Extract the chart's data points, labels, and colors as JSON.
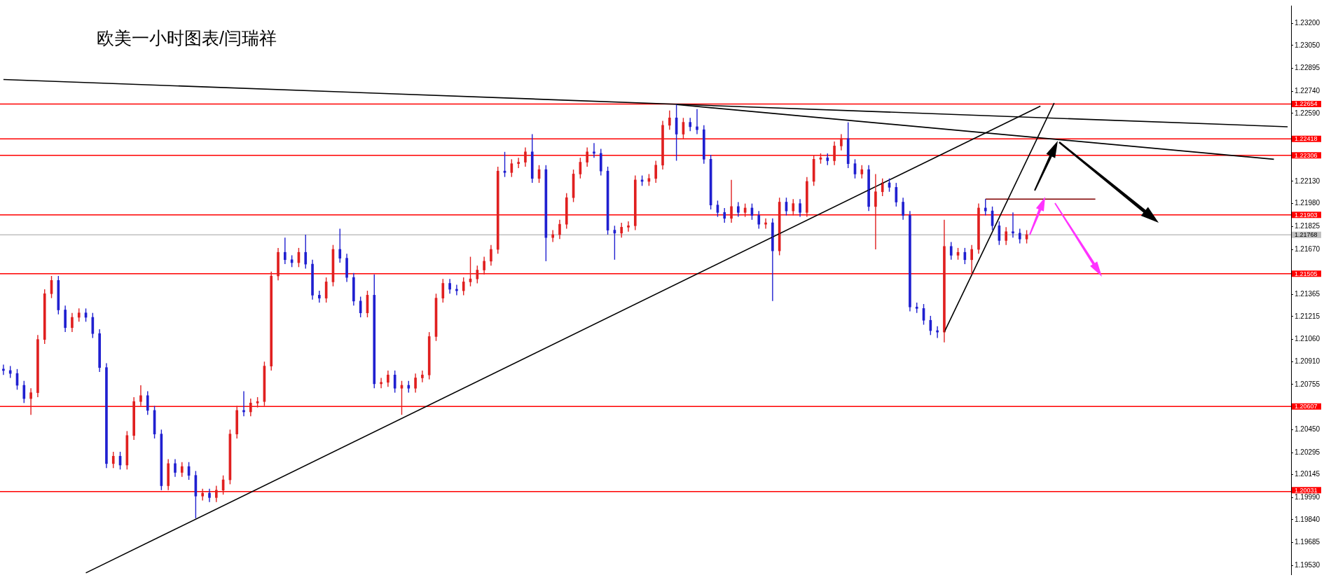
{
  "chart_data": {
    "type": "candlestick",
    "title": "欧美一小时图表/闫瑞祥",
    "categories": [
      null,
      null,
      null,
      null,
      null,
      null,
      null,
      null,
      null,
      null,
      null,
      null,
      null,
      null,
      null,
      null,
      null,
      null,
      null,
      null,
      null,
      null,
      null,
      null,
      null,
      null,
      null,
      null,
      null,
      null,
      null,
      null,
      null,
      null,
      null,
      null,
      null,
      null,
      null,
      null,
      null,
      null,
      null,
      null,
      null,
      null,
      null,
      null,
      null,
      null,
      null,
      null,
      null,
      null,
      null,
      null,
      null,
      null,
      null,
      null,
      null,
      null,
      null,
      null,
      null,
      null,
      null,
      null,
      null,
      null,
      null,
      null,
      null,
      null,
      null,
      null,
      null,
      null,
      null,
      null,
      null,
      null,
      null,
      null,
      null,
      null,
      null,
      null,
      null,
      null,
      null,
      null,
      null,
      null,
      null,
      null,
      null,
      null,
      null,
      null,
      null,
      null,
      null,
      null,
      null,
      null,
      null,
      null,
      null,
      null,
      null,
      null,
      null,
      null,
      null,
      null,
      null,
      null,
      null,
      null,
      null,
      null,
      null,
      null,
      null,
      null,
      null,
      null,
      null,
      null,
      null,
      null,
      null,
      null,
      null,
      null,
      null,
      null,
      null,
      null,
      null,
      null,
      null,
      null,
      null,
      null,
      null,
      null,
      null,
      null,
      null,
      null,
      null,
      null,
      null,
      null,
      null,
      null,
      null,
      null,
      null,
      null,
      null,
      null,
      null,
      null,
      null,
      null,
      null,
      null,
      null,
      null,
      null,
      null,
      null,
      null,
      null,
      null,
      null,
      null,
      null,
      null,
      null,
      null,
      null,
      null,
      null,
      null
    ],
    "ohlc": [
      [
        1.2086,
        1.2089,
        1.2082,
        1.2085
      ],
      [
        1.2085,
        1.2088,
        1.208,
        1.2083
      ],
      [
        1.2083,
        1.2086,
        1.2072,
        1.2075
      ],
      [
        1.2075,
        1.2078,
        1.2063,
        1.2066
      ],
      [
        1.2066,
        1.2073,
        1.2055,
        1.207
      ],
      [
        1.207,
        1.2109,
        1.2067,
        1.2106
      ],
      [
        1.2106,
        1.214,
        1.2103,
        1.2137
      ],
      [
        1.2137,
        1.2149,
        1.2134,
        1.2146
      ],
      [
        1.2146,
        1.2149,
        1.2123,
        1.2126
      ],
      [
        1.2126,
        1.2129,
        1.2111,
        1.2114
      ],
      [
        1.2114,
        1.2124,
        1.2111,
        1.2121
      ],
      [
        1.2121,
        1.2127,
        1.2118,
        1.2124
      ],
      [
        1.2124,
        1.2127,
        1.2118,
        1.2121
      ],
      [
        1.2121,
        1.2124,
        1.2107,
        1.211
      ],
      [
        1.211,
        1.2113,
        1.2084,
        1.2087
      ],
      [
        1.2087,
        1.209,
        1.2019,
        1.2022
      ],
      [
        1.2022,
        1.203,
        1.2019,
        1.2027
      ],
      [
        1.2027,
        1.203,
        1.2018,
        1.2021
      ],
      [
        1.2021,
        1.2044,
        1.2018,
        1.2041
      ],
      [
        1.2041,
        1.2067,
        1.2038,
        1.2064
      ],
      [
        1.2064,
        1.2075,
        1.2061,
        1.2068
      ],
      [
        1.2068,
        1.2071,
        1.2055,
        1.2058
      ],
      [
        1.2058,
        1.2061,
        1.2039,
        1.2042
      ],
      [
        1.2042,
        1.2045,
        1.2004,
        1.2007
      ],
      [
        1.2007,
        1.2025,
        1.2004,
        1.2022
      ],
      [
        1.2022,
        1.2025,
        1.2013,
        1.2016
      ],
      [
        1.2016,
        1.2023,
        1.2013,
        1.202
      ],
      [
        1.202,
        1.2023,
        1.2011,
        1.2014
      ],
      [
        1.2014,
        1.2017,
        1.1985,
        1.2
      ],
      [
        1.2,
        1.2005,
        1.1997,
        1.2002
      ],
      [
        1.2002,
        1.2005,
        1.1996,
        1.1999
      ],
      [
        1.1999,
        1.2007,
        1.1996,
        1.2004
      ],
      [
        1.2004,
        1.2014,
        1.2001,
        1.2011
      ],
      [
        1.2011,
        1.2045,
        1.2008,
        1.2042
      ],
      [
        1.2042,
        1.2061,
        1.2039,
        1.2058
      ],
      [
        1.2058,
        1.2071,
        1.2054,
        1.2057
      ],
      [
        1.2057,
        1.2066,
        1.2054,
        1.2063
      ],
      [
        1.2063,
        1.2067,
        1.206,
        1.2064
      ],
      [
        1.2064,
        1.2091,
        1.2061,
        1.2088
      ],
      [
        1.2088,
        1.2152,
        1.2085,
        1.2149
      ],
      [
        1.2149,
        1.2168,
        1.2146,
        1.2165
      ],
      [
        1.2165,
        1.2175,
        1.2157,
        1.216
      ],
      [
        1.216,
        1.2163,
        1.2155,
        1.2158
      ],
      [
        1.2158,
        1.2168,
        1.2155,
        1.2165
      ],
      [
        1.2165,
        1.2177,
        1.2154,
        1.2157
      ],
      [
        1.2157,
        1.216,
        1.2133,
        1.2136
      ],
      [
        1.2136,
        1.2139,
        1.2131,
        1.2134
      ],
      [
        1.2134,
        1.2148,
        1.2131,
        1.2145
      ],
      [
        1.2145,
        1.217,
        1.2142,
        1.2167
      ],
      [
        1.2167,
        1.2181,
        1.2158,
        1.2161
      ],
      [
        1.2161,
        1.2164,
        1.2145,
        1.2148
      ],
      [
        1.2148,
        1.2151,
        1.2129,
        1.2132
      ],
      [
        1.2132,
        1.2135,
        1.2121,
        1.2124
      ],
      [
        1.2124,
        1.2139,
        1.2121,
        1.2136
      ],
      [
        1.2136,
        1.215,
        1.2073,
        1.2076
      ],
      [
        1.2076,
        1.208,
        1.2073,
        1.2077
      ],
      [
        1.2077,
        1.2085,
        1.2074,
        1.2082
      ],
      [
        1.2082,
        1.2085,
        1.207,
        1.2073
      ],
      [
        1.2073,
        1.2078,
        1.2055,
        1.2075
      ],
      [
        1.2075,
        1.2078,
        1.207,
        1.2073
      ],
      [
        1.2073,
        1.2083,
        1.207,
        1.208
      ],
      [
        1.208,
        1.2085,
        1.2077,
        1.2082
      ],
      [
        1.2082,
        1.2111,
        1.2079,
        1.2108
      ],
      [
        1.2108,
        1.2137,
        1.2105,
        1.2134
      ],
      [
        1.2134,
        1.2147,
        1.2131,
        1.2144
      ],
      [
        1.2144,
        1.2147,
        1.2137,
        1.214
      ],
      [
        1.214,
        1.2143,
        1.2136,
        1.2139
      ],
      [
        1.2139,
        1.2148,
        1.2136,
        1.2145
      ],
      [
        1.2145,
        1.2162,
        1.2142,
        1.2147
      ],
      [
        1.2147,
        1.2156,
        1.2144,
        1.2153
      ],
      [
        1.2153,
        1.2162,
        1.215,
        1.2159
      ],
      [
        1.2159,
        1.217,
        1.2156,
        1.2167
      ],
      [
        1.2167,
        1.2223,
        1.2164,
        1.222
      ],
      [
        1.222,
        1.2233,
        1.2216,
        1.2219
      ],
      [
        1.2219,
        1.2228,
        1.2216,
        1.2225
      ],
      [
        1.2225,
        1.2229,
        1.2222,
        1.2226
      ],
      [
        1.2226,
        1.2236,
        1.2223,
        1.2233
      ],
      [
        1.2233,
        1.2245,
        1.2212,
        1.2215
      ],
      [
        1.2215,
        1.2224,
        1.2212,
        1.2221
      ],
      [
        1.2221,
        1.2224,
        1.2159,
        1.2175
      ],
      [
        1.2175,
        1.218,
        1.2172,
        1.2177
      ],
      [
        1.2177,
        1.2187,
        1.2174,
        1.2184
      ],
      [
        1.2184,
        1.2205,
        1.2181,
        1.2202
      ],
      [
        1.2202,
        1.2221,
        1.2199,
        1.2218
      ],
      [
        1.2218,
        1.2229,
        1.2215,
        1.2226
      ],
      [
        1.2226,
        1.2236,
        1.2223,
        1.2233
      ],
      [
        1.2233,
        1.2239,
        1.2229,
        1.2232
      ],
      [
        1.2232,
        1.2235,
        1.2217,
        1.222
      ],
      [
        1.222,
        1.2223,
        1.2177,
        1.218
      ],
      [
        1.218,
        1.2183,
        1.216,
        1.2178
      ],
      [
        1.2178,
        1.2185,
        1.2175,
        1.2182
      ],
      [
        1.2182,
        1.2186,
        1.2179,
        1.2183
      ],
      [
        1.2183,
        1.2217,
        1.218,
        1.2214
      ],
      [
        1.2214,
        1.2217,
        1.221,
        1.2213
      ],
      [
        1.2213,
        1.2218,
        1.221,
        1.2215
      ],
      [
        1.2215,
        1.2227,
        1.2212,
        1.2224
      ],
      [
        1.2224,
        1.2254,
        1.2221,
        1.2251
      ],
      [
        1.2251,
        1.2261,
        1.2248,
        1.2256
      ],
      [
        1.2256,
        1.2265,
        1.2227,
        1.2245
      ],
      [
        1.2245,
        1.2256,
        1.2242,
        1.2253
      ],
      [
        1.2253,
        1.2256,
        1.2247,
        1.225
      ],
      [
        1.225,
        1.2262,
        1.2245,
        1.2248
      ],
      [
        1.2248,
        1.2251,
        1.2225,
        1.2228
      ],
      [
        1.2228,
        1.2231,
        1.2194,
        1.2197
      ],
      [
        1.2197,
        1.22,
        1.2189,
        1.2192
      ],
      [
        1.2192,
        1.2195,
        1.2185,
        1.2188
      ],
      [
        1.2188,
        1.2214,
        1.2185,
        1.2196
      ],
      [
        1.2196,
        1.2199,
        1.2189,
        1.2192
      ],
      [
        1.2192,
        1.2198,
        1.2189,
        1.2195
      ],
      [
        1.2195,
        1.2198,
        1.2187,
        1.219
      ],
      [
        1.219,
        1.2193,
        1.2181,
        1.2184
      ],
      [
        1.2184,
        1.2188,
        1.2181,
        1.2185
      ],
      [
        1.2185,
        1.2188,
        1.2132,
        1.2166
      ],
      [
        1.2166,
        1.2202,
        1.2163,
        1.2199
      ],
      [
        1.2199,
        1.2202,
        1.219,
        1.2193
      ],
      [
        1.2193,
        1.2201,
        1.219,
        1.2198
      ],
      [
        1.2198,
        1.2201,
        1.2189,
        1.2192
      ],
      [
        1.2192,
        1.2216,
        1.2189,
        1.2213
      ],
      [
        1.2213,
        1.2231,
        1.221,
        1.2228
      ],
      [
        1.2228,
        1.2232,
        1.2225,
        1.2229
      ],
      [
        1.2229,
        1.2232,
        1.2224,
        1.2227
      ],
      [
        1.2227,
        1.224,
        1.2224,
        1.2237
      ],
      [
        1.2237,
        1.2245,
        1.2234,
        1.2242
      ],
      [
        1.2242,
        1.2253,
        1.2222,
        1.2225
      ],
      [
        1.2225,
        1.2228,
        1.2215,
        1.2218
      ],
      [
        1.2218,
        1.2224,
        1.2215,
        1.2221
      ],
      [
        1.2221,
        1.2224,
        1.2193,
        1.2196
      ],
      [
        1.2196,
        1.2218,
        1.2167,
        1.2206
      ],
      [
        1.2206,
        1.2215,
        1.2203,
        1.2212
      ],
      [
        1.2212,
        1.2215,
        1.2206,
        1.2209
      ],
      [
        1.2209,
        1.2212,
        1.2196,
        1.2199
      ],
      [
        1.2199,
        1.2202,
        1.2187,
        1.219
      ],
      [
        1.219,
        1.2193,
        1.2125,
        1.2128
      ],
      [
        1.2128,
        1.2131,
        1.2124,
        1.2127
      ],
      [
        1.2127,
        1.213,
        1.2116,
        1.2119
      ],
      [
        1.2119,
        1.2122,
        1.2109,
        1.2112
      ],
      [
        1.2112,
        1.2115,
        1.2107,
        1.2111
      ],
      [
        1.2111,
        1.2187,
        1.2104,
        1.2169
      ],
      [
        1.2169,
        1.2172,
        1.216,
        1.2163
      ],
      [
        1.2163,
        1.2168,
        1.216,
        1.2165
      ],
      [
        1.2165,
        1.2168,
        1.2157,
        1.216
      ],
      [
        1.216,
        1.217,
        1.215,
        1.2167
      ],
      [
        1.2167,
        1.2198,
        1.2164,
        1.2195
      ],
      [
        1.2195,
        1.2201,
        1.219,
        1.2193
      ],
      [
        1.2193,
        1.2196,
        1.218,
        1.2183
      ],
      [
        1.2183,
        1.2186,
        1.217,
        1.2173
      ],
      [
        1.2173,
        1.2182,
        1.217,
        1.2179
      ],
      [
        1.2179,
        1.2192,
        1.2175,
        1.2178
      ],
      [
        1.2178,
        1.2181,
        1.2171,
        1.2174
      ],
      [
        1.2174,
        1.218,
        1.2171,
        1.2177
      ],
      null,
      null,
      null,
      null,
      null,
      null,
      null,
      null,
      null,
      null,
      null,
      null,
      null,
      null,
      null,
      null,
      null,
      null,
      null,
      null,
      null,
      null,
      null,
      null,
      null,
      null,
      null,
      null,
      null,
      null,
      null,
      null,
      null,
      null,
      null,
      null,
      null,
      null
    ],
    "colors": [
      "#2020d0",
      "#2020d0",
      "#2020d0",
      "#2020d0",
      "#e02020",
      "#e02020",
      "#e02020",
      "#e02020",
      "#2020d0",
      "#2020d0",
      "#e02020",
      "#e02020",
      "#2020d0",
      "#2020d0",
      "#2020d0",
      "#2020d0",
      "#e02020",
      "#2020d0",
      "#e02020",
      "#e02020",
      "#e02020",
      "#2020d0",
      "#2020d0",
      "#2020d0",
      "#e02020",
      "#2020d0",
      "#e02020",
      "#2020d0",
      "#2020d0",
      "#e02020",
      "#2020d0",
      "#e02020",
      "#e02020",
      "#e02020",
      "#e02020",
      "#2020d0",
      "#e02020",
      "#e02020",
      "#e02020",
      "#e02020",
      "#e02020",
      "#2020d0",
      "#2020d0",
      "#e02020",
      "#2020d0",
      "#2020d0",
      "#2020d0",
      "#e02020",
      "#e02020",
      "#2020d0",
      "#2020d0",
      "#2020d0",
      "#2020d0",
      "#e02020",
      "#2020d0",
      "#e02020",
      "#e02020",
      "#2020d0",
      "#e02020",
      "#2020d0",
      "#e02020",
      "#e02020",
      "#e02020",
      "#e02020",
      "#e02020",
      "#2020d0",
      "#2020d0",
      "#e02020",
      "#e02020",
      "#e02020",
      "#e02020",
      "#e02020",
      "#e02020",
      "#2020d0",
      "#e02020",
      "#e02020",
      "#e02020",
      "#2020d0",
      "#e02020",
      "#2020d0",
      "#e02020",
      "#e02020",
      "#e02020",
      "#e02020",
      "#e02020",
      "#e02020",
      "#2020d0",
      "#2020d0",
      "#2020d0",
      "#2020d0",
      "#e02020",
      "#e02020",
      "#e02020",
      "#2020d0",
      "#e02020",
      "#e02020",
      "#e02020",
      "#e02020",
      "#2020d0",
      "#e02020",
      "#2020d0",
      "#2020d0",
      "#2020d0",
      "#2020d0",
      "#2020d0",
      "#2020d0",
      "#e02020",
      "#2020d0",
      "#e02020",
      "#2020d0",
      "#2020d0",
      "#e02020",
      "#2020d0",
      "#e02020",
      "#2020d0",
      "#e02020",
      "#2020d0",
      "#e02020",
      "#e02020",
      "#e02020",
      "#2020d0",
      "#e02020",
      "#e02020",
      "#2020d0",
      "#2020d0",
      "#e02020",
      "#2020d0",
      "#e02020",
      "#e02020",
      "#2020d0",
      "#2020d0",
      "#2020d0",
      "#2020d0",
      "#2020d0",
      "#2020d0",
      "#2020d0",
      "#2020d0",
      "#e02020",
      "#2020d0",
      "#e02020",
      "#2020d0",
      "#e02020",
      "#e02020",
      "#2020d0",
      "#2020d0",
      "#2020d0",
      "#e02020",
      "#2020d0",
      "#2020d0",
      "#e02020",
      null,
      null,
      null,
      null,
      null,
      null,
      null,
      null,
      null,
      null,
      null,
      null,
      null,
      null,
      null,
      null,
      null,
      null,
      null,
      null,
      null,
      null,
      null,
      null,
      null,
      null,
      null,
      null,
      null,
      null,
      null,
      null,
      null,
      null,
      null,
      null,
      null,
      null
    ],
    "series": [
      {
        "type": "line",
        "color": "#000000",
        "values": [
          1.2282,
          null,
          null,
          null,
          null,
          null,
          null,
          null,
          null,
          null,
          null,
          null,
          null,
          null,
          null,
          null,
          null,
          null,
          null,
          null,
          null,
          null,
          null,
          null,
          null,
          null,
          null,
          null,
          null,
          null,
          null,
          null,
          null,
          null,
          null,
          null,
          null,
          null,
          null,
          null,
          null,
          null,
          null,
          null,
          null,
          null,
          null,
          null,
          null,
          null,
          null,
          null,
          null,
          null,
          null,
          null,
          null,
          null,
          null,
          null,
          null,
          null,
          null,
          null,
          null,
          null,
          null,
          null,
          null,
          null,
          null,
          null,
          null,
          null,
          null,
          null,
          null,
          null,
          null,
          null,
          null,
          null,
          null,
          null,
          null,
          null,
          null,
          null,
          null,
          null,
          null,
          null,
          null,
          null,
          null,
          null,
          null,
          null,
          null,
          null,
          null,
          null,
          null,
          null,
          null,
          null,
          null,
          null,
          null,
          null,
          null,
          null,
          null,
          null,
          null,
          null,
          null,
          null,
          null,
          null,
          null,
          null,
          null,
          null,
          null,
          null,
          null,
          null,
          null,
          null,
          null,
          null,
          null,
          null,
          null,
          null,
          null,
          null,
          null,
          null,
          null,
          null,
          null,
          null,
          null,
          null,
          null,
          null,
          null,
          null,
          null,
          null,
          null,
          null,
          null,
          null,
          null,
          null,
          null,
          null,
          null,
          null,
          null,
          null,
          null,
          null,
          null,
          null,
          null,
          null,
          null,
          null,
          null,
          null,
          null,
          null,
          null,
          null,
          null,
          null,
          null,
          null,
          null,
          null,
          null,
          null,
          null,
          1.225
        ]
      },
      {
        "type": "line",
        "color": "#000000",
        "values": [
          null,
          null,
          null,
          null,
          null,
          null,
          null,
          null,
          null,
          null,
          null,
          null,
          null,
          null,
          null,
          null,
          null,
          null,
          null,
          null,
          null,
          null,
          null,
          null,
          null,
          null,
          null,
          null,
          null,
          null,
          null,
          null,
          null,
          null,
          null,
          null,
          null,
          null,
          null,
          null,
          null,
          null,
          null,
          null,
          null,
          null,
          null,
          null,
          null,
          null,
          null,
          null,
          null,
          null,
          null,
          null,
          null,
          null,
          null,
          null,
          null,
          null,
          null,
          null,
          null,
          null,
          null,
          null,
          null,
          null,
          null,
          null,
          null,
          null,
          null,
          null,
          null,
          null,
          null,
          null,
          null,
          null,
          null,
          null,
          null,
          null,
          null,
          null,
          null,
          null,
          null,
          null,
          null,
          null,
          null,
          null,
          null,
          null,
          1.2265,
          null,
          null,
          null,
          null,
          null,
          null,
          null,
          null,
          null,
          null,
          null,
          null,
          null,
          null,
          null,
          null,
          null,
          null,
          null,
          null,
          null,
          null,
          null,
          null,
          null,
          null,
          null,
          null,
          null,
          null,
          null,
          null,
          null,
          null,
          null,
          null,
          null,
          null,
          null,
          null,
          null,
          null,
          null,
          null,
          null,
          null,
          null,
          null,
          null,
          null,
          null,
          null,
          null,
          null,
          null,
          null,
          null,
          null,
          null,
          null,
          null,
          null,
          null,
          null,
          null,
          null,
          null,
          null,
          null,
          null,
          null,
          null,
          null,
          null,
          null,
          null,
          null,
          null,
          null,
          null,
          null,
          null,
          null,
          null,
          null,
          null,
          1.2228,
          null,
          null
        ]
      },
      {
        "type": "line",
        "color": "#000000",
        "values": [
          null,
          null,
          null,
          null,
          null,
          null,
          null,
          null,
          null,
          null,
          null,
          null,
          1.1948,
          null,
          null,
          null,
          null,
          null,
          null,
          null,
          null,
          null,
          null,
          null,
          null,
          null,
          null,
          null,
          null,
          null,
          null,
          null,
          null,
          null,
          null,
          null,
          null,
          null,
          null,
          null,
          null,
          null,
          null,
          null,
          null,
          null,
          null,
          null,
          null,
          null,
          null,
          null,
          null,
          null,
          null,
          null,
          null,
          null,
          null,
          null,
          null,
          null,
          null,
          null,
          null,
          null,
          null,
          null,
          null,
          null,
          null,
          null,
          null,
          null,
          null,
          null,
          null,
          null,
          null,
          null,
          null,
          null,
          null,
          null,
          null,
          null,
          null,
          null,
          null,
          null,
          null,
          null,
          null,
          null,
          null,
          null,
          null,
          null,
          null,
          null,
          null,
          null,
          null,
          null,
          null,
          null,
          null,
          null,
          null,
          null,
          null,
          null,
          null,
          null,
          null,
          null,
          null,
          null,
          null,
          null,
          null,
          null,
          null,
          null,
          null,
          null,
          null,
          null,
          null,
          null,
          null,
          null,
          null,
          null,
          null,
          null,
          null,
          null,
          null,
          null,
          null,
          null,
          null,
          null,
          null,
          null,
          null,
          null,
          null,
          null,
          null,
          1.2264,
          null,
          null,
          null,
          null,
          null,
          null,
          null,
          null,
          null,
          null,
          null,
          null,
          null,
          null,
          null,
          null,
          null,
          null,
          null,
          null,
          null,
          null,
          null,
          null,
          null,
          null,
          null,
          null,
          null,
          null,
          null,
          null,
          null,
          null,
          null,
          null
        ]
      },
      {
        "type": "line",
        "color": "#000000",
        "values": [
          null,
          null,
          null,
          null,
          null,
          null,
          null,
          null,
          null,
          null,
          null,
          null,
          null,
          null,
          null,
          null,
          null,
          null,
          null,
          null,
          null,
          null,
          null,
          null,
          null,
          null,
          null,
          null,
          null,
          null,
          null,
          null,
          null,
          null,
          null,
          null,
          null,
          null,
          null,
          null,
          null,
          null,
          null,
          null,
          null,
          null,
          null,
          null,
          null,
          null,
          null,
          null,
          null,
          null,
          null,
          null,
          null,
          null,
          null,
          null,
          null,
          null,
          null,
          null,
          null,
          null,
          null,
          null,
          null,
          null,
          null,
          null,
          null,
          null,
          null,
          null,
          null,
          null,
          null,
          null,
          null,
          null,
          null,
          null,
          null,
          null,
          null,
          null,
          null,
          null,
          null,
          null,
          null,
          null,
          null,
          null,
          null,
          null,
          null,
          null,
          null,
          null,
          null,
          null,
          null,
          null,
          null,
          null,
          null,
          null,
          null,
          null,
          null,
          null,
          null,
          null,
          null,
          null,
          null,
          null,
          null,
          null,
          null,
          null,
          null,
          null,
          null,
          null,
          null,
          null,
          null,
          null,
          null,
          null,
          null,
          null,
          null,
          1.2111,
          null,
          null,
          null,
          null,
          null,
          null,
          null,
          null,
          null,
          null,
          null,
          null,
          null,
          null,
          null,
          1.2266,
          null,
          null,
          null,
          null,
          null,
          null,
          null,
          null,
          null,
          null,
          null,
          null,
          null,
          null,
          null,
          null,
          null,
          null,
          null,
          null,
          null,
          null,
          null,
          null,
          null,
          null,
          null,
          null,
          null,
          null,
          null,
          null,
          null,
          null
        ]
      },
      {
        "type": "line",
        "color": "#800000",
        "values": [
          null,
          null,
          null,
          null,
          null,
          null,
          null,
          null,
          null,
          null,
          null,
          null,
          null,
          null,
          null,
          null,
          null,
          null,
          null,
          null,
          null,
          null,
          null,
          null,
          null,
          null,
          null,
          null,
          null,
          null,
          null,
          null,
          null,
          null,
          null,
          null,
          null,
          null,
          null,
          null,
          null,
          null,
          null,
          null,
          null,
          null,
          null,
          null,
          null,
          null,
          null,
          null,
          null,
          null,
          null,
          null,
          null,
          null,
          null,
          null,
          null,
          null,
          null,
          null,
          null,
          null,
          null,
          null,
          null,
          null,
          null,
          null,
          null,
          null,
          null,
          null,
          null,
          null,
          null,
          null,
          null,
          null,
          null,
          null,
          null,
          null,
          null,
          null,
          null,
          null,
          null,
          null,
          null,
          null,
          null,
          null,
          null,
          null,
          null,
          null,
          null,
          null,
          null,
          null,
          null,
          null,
          null,
          null,
          null,
          null,
          null,
          null,
          null,
          null,
          null,
          null,
          null,
          null,
          null,
          null,
          null,
          null,
          null,
          null,
          null,
          null,
          null,
          null,
          null,
          null,
          null,
          null,
          null,
          null,
          null,
          null,
          null,
          null,
          null,
          null,
          null,
          null,
          null,
          1.2201,
          null,
          null,
          null,
          null,
          null,
          null,
          null,
          null,
          null,
          null,
          null,
          null,
          null,
          null,
          null,
          1.2201,
          null,
          null,
          null,
          null,
          null,
          null,
          null,
          null,
          null,
          null,
          null,
          null,
          null,
          null,
          null,
          null,
          null,
          null,
          null,
          null,
          null,
          null,
          null,
          null,
          null,
          null,
          null,
          null
        ]
      }
    ],
    "ylim": [
      1.1947,
      1.2332
    ],
    "yticks": [
      {
        "value": 1.232,
        "label": "1.23200"
      },
      {
        "value": 1.2305,
        "label": "1.23050"
      },
      {
        "value": 1.22895,
        "label": "1.22895"
      },
      {
        "value": 1.2274,
        "label": "1.22740"
      },
      {
        "value": 1.2259,
        "label": "1.22590"
      },
      {
        "value": 1.2213,
        "label": "1.22130"
      },
      {
        "value": 1.2198,
        "label": "1.21980"
      },
      {
        "value": 1.21825,
        "label": "1.21825"
      },
      {
        "value": 1.2167,
        "label": "1.21670"
      },
      {
        "value": 1.21365,
        "label": "1.21365"
      },
      {
        "value": 1.21215,
        "label": "1.21215"
      },
      {
        "value": 1.2106,
        "label": "1.21060"
      },
      {
        "value": 1.2091,
        "label": "1.20910"
      },
      {
        "value": 1.20755,
        "label": "1.20755"
      },
      {
        "value": 1.2045,
        "label": "1.20450"
      },
      {
        "value": 1.20295,
        "label": "1.20295"
      },
      {
        "value": 1.20145,
        "label": "1.20145"
      },
      {
        "value": 1.1999,
        "label": "1.19990"
      },
      {
        "value": 1.1984,
        "label": "1.19840"
      },
      {
        "value": 1.19685,
        "label": "1.19685"
      },
      {
        "value": 1.1953,
        "label": "1.19530"
      }
    ],
    "ref_lines": [
      {
        "axis": "y",
        "value": 1.22654,
        "label": "1.22654",
        "color": "#ff0000"
      },
      {
        "axis": "y",
        "value": 1.22418,
        "label": "1.22418",
        "color": "#ff0000"
      },
      {
        "axis": "y",
        "value": 1.22306,
        "label": "1.22306",
        "color": "#ff0000"
      },
      {
        "axis": "y",
        "value": 1.21903,
        "label": "1.21903",
        "color": "#ff0000"
      },
      {
        "axis": "y",
        "value": 1.21768,
        "label": "1.21768",
        "color": "#c0c0c0"
      },
      {
        "axis": "y",
        "value": 1.21505,
        "label": "1.21505",
        "color": "#ff0000"
      },
      {
        "axis": "y",
        "value": 1.20607,
        "label": "1.20607",
        "color": "#ff0000"
      },
      {
        "axis": "y",
        "value": 1.20031,
        "label": "1.20031",
        "color": "#ff0000"
      }
    ],
    "tick_labels": "y"
  }
}
